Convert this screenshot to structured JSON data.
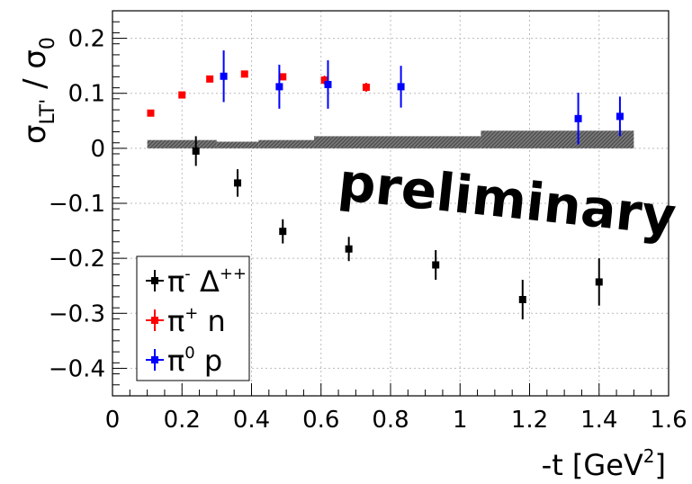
{
  "chart_data": {
    "type": "scatter",
    "xlabel": "-t [GeV",
    "xlabel_sup": "2",
    "xlabel_close": "]",
    "ylabel": "σ",
    "ylabel_sub": "LT'",
    "ylabel_mid": " / σ",
    "ylabel_sub2": "0",
    "xlim": [
      0,
      1.6
    ],
    "ylim": [
      -0.45,
      0.25
    ],
    "grid": true,
    "legend_position": "bottom-left",
    "xticks": [
      "0",
      "0.2",
      "0.4",
      "0.6",
      "0.8",
      "1",
      "1.2",
      "1.4",
      "1.6"
    ],
    "yticks": [
      "0.2",
      "0.1",
      "0",
      "−0.1",
      "−0.2",
      "−0.3",
      "−0.4"
    ],
    "annotation": "preliminary",
    "series": [
      {
        "name": "π⁻ Δ⁺⁺",
        "color": "#000000",
        "points": [
          {
            "x": 0.24,
            "y": -0.005,
            "err": 0.027
          },
          {
            "x": 0.36,
            "y": -0.063,
            "err": 0.025
          },
          {
            "x": 0.49,
            "y": -0.151,
            "err": 0.022
          },
          {
            "x": 0.68,
            "y": -0.183,
            "err": 0.022
          },
          {
            "x": 0.93,
            "y": -0.212,
            "err": 0.027
          },
          {
            "x": 1.18,
            "y": -0.275,
            "err": 0.036
          },
          {
            "x": 1.4,
            "y": -0.243,
            "err": 0.043
          }
        ]
      },
      {
        "name": "π⁺ n",
        "color": "#ff0000",
        "points": [
          {
            "x": 0.11,
            "y": 0.064,
            "err": 0.004
          },
          {
            "x": 0.2,
            "y": 0.097,
            "err": 0.004
          },
          {
            "x": 0.28,
            "y": 0.126,
            "err": 0.004
          },
          {
            "x": 0.38,
            "y": 0.135,
            "err": 0.004
          },
          {
            "x": 0.49,
            "y": 0.13,
            "err": 0.006
          },
          {
            "x": 0.61,
            "y": 0.124,
            "err": 0.008
          },
          {
            "x": 0.73,
            "y": 0.111,
            "err": 0.008
          }
        ]
      },
      {
        "name": "π⁰ p",
        "color": "#0000ff",
        "points": [
          {
            "x": 0.32,
            "y": 0.131,
            "err": 0.047
          },
          {
            "x": 0.48,
            "y": 0.112,
            "err": 0.04
          },
          {
            "x": 0.62,
            "y": 0.116,
            "err": 0.044
          },
          {
            "x": 0.83,
            "y": 0.112,
            "err": 0.038
          },
          {
            "x": 1.34,
            "y": 0.054,
            "err": 0.047
          },
          {
            "x": 1.46,
            "y": 0.058,
            "err": 0.036
          }
        ]
      }
    ],
    "systematic_band": [
      {
        "x0": 0.1,
        "x1": 0.3,
        "y1": 0.015
      },
      {
        "x0": 0.3,
        "x1": 0.42,
        "y1": 0.012
      },
      {
        "x0": 0.42,
        "x1": 0.58,
        "y1": 0.015
      },
      {
        "x0": 0.58,
        "x1": 1.06,
        "y1": 0.022
      },
      {
        "x0": 1.06,
        "x1": 1.5,
        "y1": 0.032
      }
    ],
    "legend": [
      {
        "pre": "π",
        "sup": "-",
        "post": "  Δ",
        "sup2": "++",
        "color": "#000000"
      },
      {
        "pre": "π",
        "sup": "+",
        "post": " n",
        "sup2": "",
        "color": "#ff0000"
      },
      {
        "pre": "π",
        "sup": "0",
        "post": " p",
        "sup2": "",
        "color": "#0000ff"
      }
    ]
  }
}
